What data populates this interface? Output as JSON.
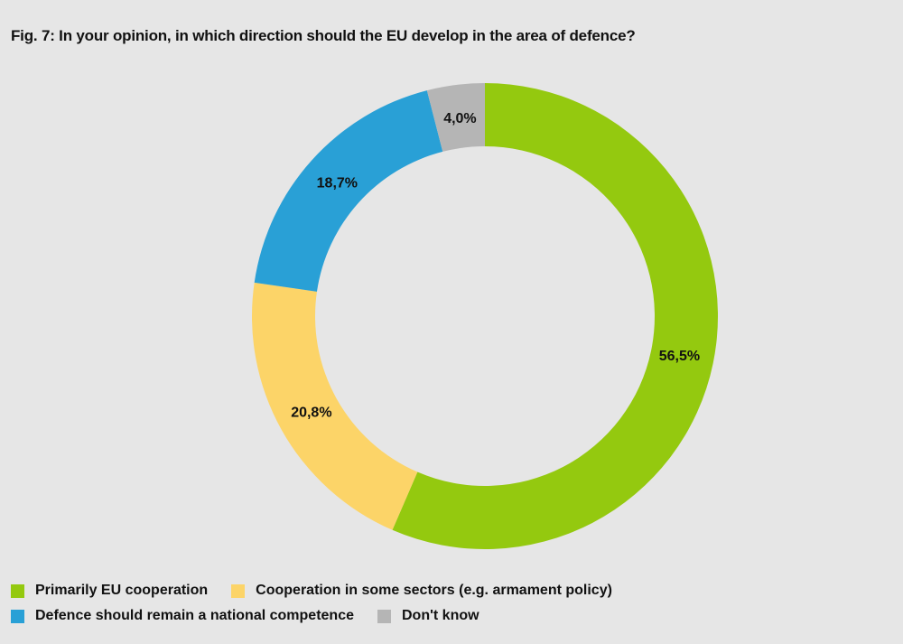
{
  "title": "Fig. 7: In your opinion, in which direction should the EU develop in the area of defence?",
  "chart_data": {
    "type": "pie",
    "variant": "donut",
    "title": "Fig. 7: In your opinion, in which direction should the EU develop in the area of defence?",
    "start_angle_deg": 0,
    "direction": "clockwise",
    "legend_position": "bottom-left",
    "slices": [
      {
        "name": "Primarily EU cooperation",
        "value": 56.5,
        "label": "56,5%",
        "color": "#94c90f"
      },
      {
        "name": "Cooperation in some sectors (e.g. armament policy)",
        "value": 20.8,
        "label": "20,8%",
        "color": "#fcd468"
      },
      {
        "name": "Defence should remain a national competence",
        "value": 18.7,
        "label": "18,7%",
        "color": "#29a0d6"
      },
      {
        "name": "Don't know",
        "value": 4.0,
        "label": "4,0%",
        "color": "#b5b5b5"
      }
    ]
  }
}
